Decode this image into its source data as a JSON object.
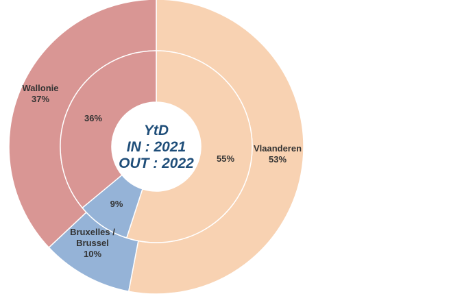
{
  "chart_data": {
    "type": "pie",
    "subtype": "double-doughnut",
    "center_text": [
      "YtD",
      "IN : 2021",
      "OUT : 2022"
    ],
    "categories": [
      "Vlaanderen",
      "Bruxelles / Brussel",
      "Wallonie"
    ],
    "colors": [
      "#f8d2b2",
      "#95b3d7",
      "#d99694"
    ],
    "rings": [
      {
        "ring": "outer",
        "values": [
          53,
          10,
          37
        ],
        "labels": [
          [
            "Vlaanderen",
            "53%"
          ],
          [
            "Bruxelles /",
            "Brussel",
            "10%"
          ],
          [
            "Wallonie",
            "37%"
          ]
        ]
      },
      {
        "ring": "inner",
        "values": [
          55,
          9,
          36
        ],
        "labels": [
          [
            "55%"
          ],
          [
            "9%"
          ],
          [
            "36%"
          ]
        ]
      }
    ]
  }
}
